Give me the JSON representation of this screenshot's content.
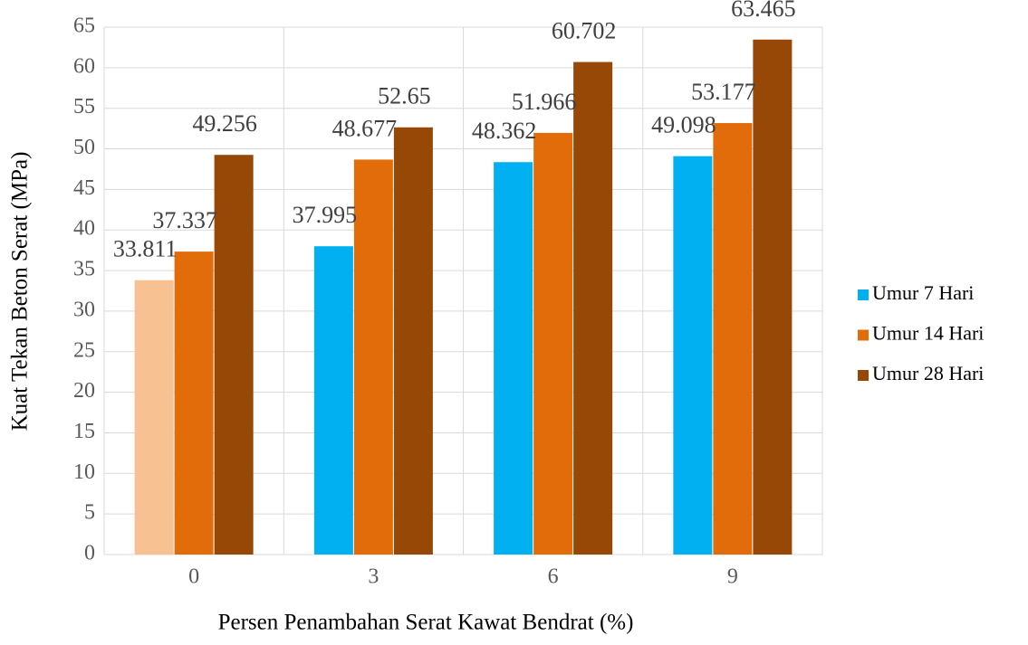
{
  "chart_data": {
    "type": "bar",
    "xlabel": "Persen Penambahan Serat Kawat Bendrat (%)",
    "ylabel": "Kuat Tekan Beton Serat (MPa)",
    "categories": [
      "0",
      "3",
      "6",
      "9"
    ],
    "series": [
      {
        "name": "Umur 7 Hari",
        "color": "#00b0f0",
        "colors": [
          "#f8c192",
          "#00b0f0",
          "#00b0f0",
          "#00b0f0"
        ],
        "values": [
          33.811,
          37.995,
          48.362,
          49.098
        ]
      },
      {
        "name": "Umur 14 Hari",
        "color": "#e36c0a",
        "values": [
          37.337,
          48.677,
          51.966,
          53.177
        ]
      },
      {
        "name": "Umur 28 Hari",
        "color": "#974806",
        "values": [
          49.256,
          52.65,
          60.702,
          63.465
        ]
      }
    ],
    "ylim": [
      0,
      65
    ],
    "yticks": [
      0,
      5,
      10,
      15,
      20,
      25,
      30,
      35,
      40,
      45,
      50,
      55,
      60,
      65
    ],
    "grid": true,
    "legend": "right"
  }
}
